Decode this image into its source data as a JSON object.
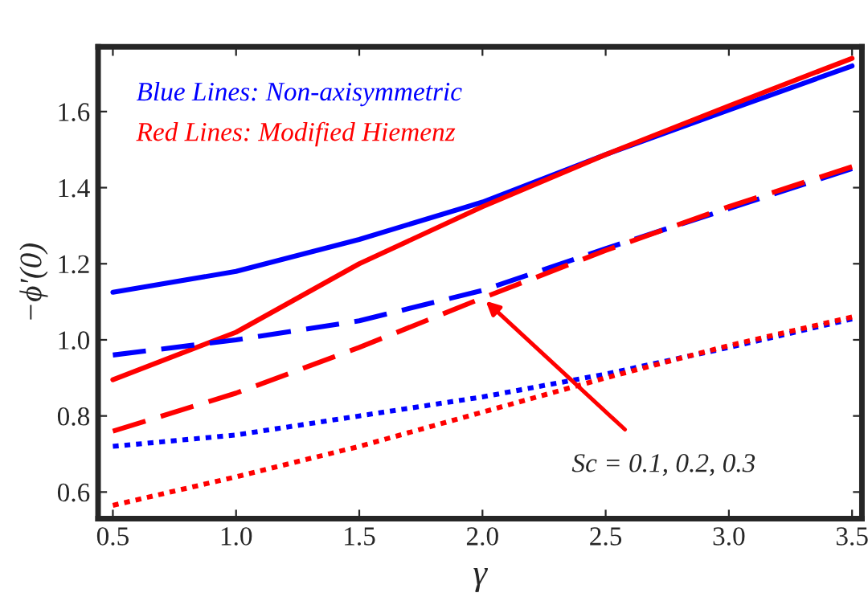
{
  "chart_data": {
    "type": "line",
    "xlabel": "γ",
    "ylabel": "−ϕ′(0)",
    "x": [
      0.5,
      1.0,
      1.5,
      2.0,
      2.5,
      3.0,
      3.5
    ],
    "series": [
      {
        "color": "#0000ff",
        "line_style": "solid",
        "values": [
          1.125,
          1.18,
          1.264,
          1.362,
          1.487,
          1.604,
          1.72
        ]
      },
      {
        "color": "#ff0000",
        "line_style": "solid",
        "values": [
          0.895,
          1.02,
          1.2,
          1.35,
          1.487,
          1.615,
          1.74
        ]
      },
      {
        "color": "#0000ff",
        "line_style": "dashed",
        "values": [
          0.96,
          1.0,
          1.05,
          1.13,
          1.24,
          1.345,
          1.45
        ]
      },
      {
        "color": "#ff0000",
        "line_style": "dashed",
        "values": [
          0.76,
          0.86,
          0.98,
          1.11,
          1.235,
          1.35,
          1.455
        ]
      },
      {
        "color": "#0000ff",
        "line_style": "dotted",
        "values": [
          0.72,
          0.75,
          0.8,
          0.85,
          0.91,
          0.98,
          1.055
        ]
      },
      {
        "color": "#ff0000",
        "line_style": "dotted",
        "values": [
          0.565,
          0.64,
          0.72,
          0.81,
          0.9,
          0.985,
          1.06
        ]
      }
    ],
    "xlim": [
      0.44,
      3.54
    ],
    "ylim": [
      0.53,
      1.77
    ],
    "xticks": [
      {
        "value": 0.5,
        "label": "0.5"
      },
      {
        "value": 1.0,
        "label": "1.0"
      },
      {
        "value": 1.5,
        "label": "1.5"
      },
      {
        "value": 2.0,
        "label": "2.0"
      },
      {
        "value": 2.5,
        "label": "2.5"
      },
      {
        "value": 3.0,
        "label": "3.0"
      },
      {
        "value": 3.5,
        "label": "3.5"
      }
    ],
    "yticks": [
      {
        "value": 0.6,
        "label": "0.6"
      },
      {
        "value": 0.8,
        "label": "0.8"
      },
      {
        "value": 1.0,
        "label": "1.0"
      },
      {
        "value": 1.2,
        "label": "1.2"
      },
      {
        "value": 1.4,
        "label": "1.4"
      },
      {
        "value": 1.6,
        "label": "1.6"
      }
    ],
    "grid": false,
    "legend": false,
    "annotations": [
      "Blue Lines: Non-axisymmetric",
      "Red Lines: Modified Hiemenz",
      {
        "text": "Sc = 0.1, 0.2, 0.3",
        "x": 2.0,
        "y": 1.11
      }
    ]
  }
}
